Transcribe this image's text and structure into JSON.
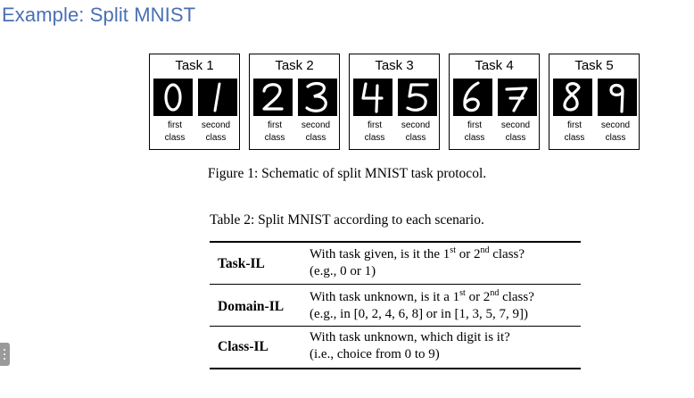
{
  "slide": {
    "title": "Example: Split MNIST"
  },
  "figure": {
    "tasks": [
      {
        "label": "Task 1",
        "digits": [
          "0",
          "1"
        ],
        "first": [
          "first",
          "class"
        ],
        "second": [
          "second",
          "class"
        ]
      },
      {
        "label": "Task 2",
        "digits": [
          "2",
          "3"
        ],
        "first": [
          "first",
          "class"
        ],
        "second": [
          "second",
          "class"
        ]
      },
      {
        "label": "Task 3",
        "digits": [
          "4",
          "5"
        ],
        "first": [
          "first",
          "class"
        ],
        "second": [
          "second",
          "class"
        ]
      },
      {
        "label": "Task 4",
        "digits": [
          "6",
          "7"
        ],
        "first": [
          "first",
          "class"
        ],
        "second": [
          "second",
          "class"
        ]
      },
      {
        "label": "Task 5",
        "digits": [
          "8",
          "9"
        ],
        "first": [
          "first",
          "class"
        ],
        "second": [
          "second",
          "class"
        ]
      }
    ],
    "caption": "Figure 1: Schematic of split MNIST task protocol."
  },
  "table": {
    "caption": "Table 2: Split MNIST according to each scenario.",
    "rows": [
      {
        "scenario": "Task-IL",
        "line1": {
          "a": "With task given, is it the 1",
          "sup1": "st",
          "b": " or 2",
          "sup2": "nd",
          "c": " class?"
        },
        "line2": "(e.g., 0 or 1)"
      },
      {
        "scenario": "Domain-IL",
        "line1": {
          "a": "With task unknown, is it a 1",
          "sup1": "st",
          "b": " or 2",
          "sup2": "nd",
          "c": " class?"
        },
        "line2": "(e.g., in [0, 2, 4, 6, 8] or in [1, 3, 5, 7, 9])"
      },
      {
        "scenario": "Class-IL",
        "line1": {
          "a": "With task unknown, which digit is it?",
          "sup1": "",
          "b": "",
          "sup2": "",
          "c": ""
        },
        "line2": "(i.e., choice from 0 to 9)"
      }
    ]
  },
  "colors": {
    "title": "#4a6fb5",
    "digit_bg": "#000000",
    "digit_stroke": "#ffffff"
  }
}
